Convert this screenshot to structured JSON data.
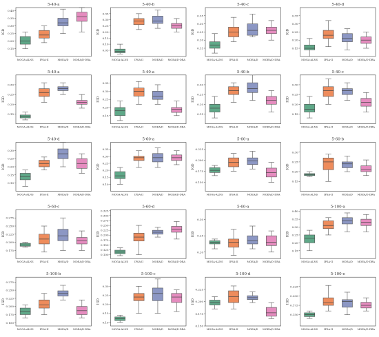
{
  "figure": {
    "ylabel": "IGD",
    "categories": [
      "MOGA-ALNS",
      "IPSA-II",
      "MOEA/D",
      "MOEA/D-DRA"
    ]
  },
  "colors": {
    "MOGA-ALNS": "#5fa888",
    "IPSA-II": "#ee8c5c",
    "MOEA/D": "#8c97c4",
    "MOEA/D-DRA": "#e58cbf",
    "axis": "#444444",
    "whisker": "#555555"
  },
  "chart_data": [
    {
      "type": "box",
      "title": "5-40-a",
      "ylim": [
        0.1,
        0.42
      ],
      "yticks": [
        0.15,
        0.2,
        0.25,
        0.3,
        0.35,
        0.4
      ],
      "ylabel": "IGD",
      "categories": [
        "MOGA-ALNS",
        "IPSA-II",
        "MOEA/D",
        "MOEA/D-DRA"
      ],
      "boxes": [
        {
          "min": 0.15,
          "q1": 0.18,
          "median": 0.2,
          "q3": 0.23,
          "max": 0.26
        },
        {
          "min": 0.19,
          "q1": 0.22,
          "median": 0.24,
          "q3": 0.27,
          "max": 0.3
        },
        {
          "min": 0.25,
          "q1": 0.3,
          "median": 0.32,
          "q3": 0.35,
          "max": 0.41
        },
        {
          "min": 0.26,
          "q1": 0.33,
          "median": 0.36,
          "q3": 0.39,
          "max": 0.42
        }
      ]
    },
    {
      "type": "box",
      "title": "5-40-b",
      "ylim": [
        0.0,
        0.4
      ],
      "yticks": [
        0.05,
        0.1,
        0.15,
        0.2,
        0.25,
        0.3,
        0.35
      ],
      "ylabel": "IGD",
      "categories": [
        "MOGA-ALNS",
        "IPSA-II",
        "MOEA/D",
        "MOEA/D-DRA"
      ],
      "boxes": [
        {
          "min": 0.02,
          "q1": 0.03,
          "median": 0.04,
          "q3": 0.06,
          "max": 0.1
        },
        {
          "min": 0.22,
          "q1": 0.26,
          "median": 0.29,
          "q3": 0.31,
          "max": 0.35
        },
        {
          "min": 0.23,
          "q1": 0.27,
          "median": 0.29,
          "q3": 0.33,
          "max": 0.38
        },
        {
          "min": 0.2,
          "q1": 0.23,
          "median": 0.25,
          "q3": 0.27,
          "max": 0.31
        }
      ]
    },
    {
      "type": "box",
      "title": "5-40-c",
      "ylim": [
        0.1,
        0.4
      ],
      "yticks": [
        0.15,
        0.2,
        0.25,
        0.3,
        0.35
      ],
      "ylabel": "IGD",
      "categories": [
        "MOGA-ALNS",
        "IPSA-II",
        "MOEA/D",
        "MOEA/D-DRA"
      ],
      "boxes": [
        {
          "min": 0.12,
          "q1": 0.15,
          "median": 0.17,
          "q3": 0.19,
          "max": 0.24
        },
        {
          "min": 0.19,
          "q1": 0.22,
          "median": 0.25,
          "q3": 0.28,
          "max": 0.34
        },
        {
          "min": 0.22,
          "q1": 0.23,
          "median": 0.26,
          "q3": 0.3,
          "max": 0.36
        },
        {
          "min": 0.2,
          "q1": 0.24,
          "median": 0.26,
          "q3": 0.28,
          "max": 0.32
        }
      ]
    },
    {
      "type": "box",
      "title": "5-40-d",
      "ylim": [
        0.1,
        0.4
      ],
      "yticks": [
        0.15,
        0.2,
        0.25,
        0.3,
        0.35
      ],
      "ylabel": "IGD",
      "categories": [
        "MOGA-ALNS",
        "IPSA-II",
        "MOEA/D",
        "MOEA/D-DRA"
      ],
      "boxes": [
        {
          "min": 0.1,
          "q1": 0.14,
          "median": 0.15,
          "q3": 0.17,
          "max": 0.21
        },
        {
          "min": 0.16,
          "q1": 0.21,
          "median": 0.23,
          "q3": 0.26,
          "max": 0.32
        },
        {
          "min": 0.14,
          "q1": 0.19,
          "median": 0.21,
          "q3": 0.24,
          "max": 0.27
        },
        {
          "min": 0.15,
          "q1": 0.18,
          "median": 0.2,
          "q3": 0.22,
          "max": 0.25
        }
      ]
    },
    {
      "type": "box",
      "title": "5-40-a",
      "ylim": [
        0.1,
        0.35
      ],
      "yticks": [
        0.15,
        0.2,
        0.25,
        0.3
      ],
      "ylabel": "IGD",
      "categories": [
        "MOGA-ALNS",
        "IPSA-II",
        "MOEA/D",
        "MOEA/D-DRA"
      ],
      "boxes": [
        {
          "min": 0.12,
          "q1": 0.13,
          "median": 0.135,
          "q3": 0.145,
          "max": 0.16
        },
        {
          "min": 0.21,
          "q1": 0.24,
          "median": 0.26,
          "q3": 0.28,
          "max": 0.31
        },
        {
          "min": 0.25,
          "q1": 0.27,
          "median": 0.28,
          "q3": 0.29,
          "max": 0.31
        },
        {
          "min": 0.18,
          "q1": 0.2,
          "median": 0.21,
          "q3": 0.22,
          "max": 0.25
        }
      ]
    },
    {
      "type": "box",
      "title": "5-40-a",
      "ylim": [
        0.1,
        0.4
      ],
      "yticks": [
        0.15,
        0.2,
        0.25,
        0.3,
        0.35
      ],
      "ylabel": "IGD",
      "categories": [
        "MOGA-ALNS",
        "IPSA-II",
        "MOEA/D",
        "MOEA/D-DRA"
      ],
      "boxes": [
        {
          "min": 0.12,
          "q1": 0.15,
          "median": 0.18,
          "q3": 0.2,
          "max": 0.24
        },
        {
          "min": 0.22,
          "q1": 0.27,
          "median": 0.3,
          "q3": 0.32,
          "max": 0.36
        },
        {
          "min": 0.22,
          "q1": 0.25,
          "median": 0.27,
          "q3": 0.3,
          "max": 0.34
        },
        {
          "min": 0.15,
          "q1": 0.17,
          "median": 0.19,
          "q3": 0.2,
          "max": 0.24
        }
      ]
    },
    {
      "type": "box",
      "title": "5-40-b",
      "ylim": [
        0.1,
        0.35
      ],
      "yticks": [
        0.15,
        0.2,
        0.25,
        0.3
      ],
      "ylabel": "IGD",
      "categories": [
        "MOGA-ALNS",
        "IPSA-II",
        "MOEA/D",
        "MOEA/D-DRA"
      ],
      "boxes": [
        {
          "min": 0.13,
          "q1": 0.16,
          "median": 0.18,
          "q3": 0.2,
          "max": 0.24
        },
        {
          "min": 0.21,
          "q1": 0.25,
          "median": 0.27,
          "q3": 0.29,
          "max": 0.31
        },
        {
          "min": 0.22,
          "q1": 0.26,
          "median": 0.28,
          "q3": 0.31,
          "max": 0.35
        },
        {
          "min": 0.16,
          "q1": 0.2,
          "median": 0.22,
          "q3": 0.24,
          "max": 0.27
        }
      ]
    },
    {
      "type": "box",
      "title": "5-40-c",
      "ylim": [
        0.1,
        0.35
      ],
      "yticks": [
        0.15,
        0.2,
        0.25,
        0.3
      ],
      "ylabel": "IGD",
      "categories": [
        "MOGA-ALNS",
        "IPSA-II",
        "MOEA/D",
        "MOEA/D-DRA"
      ],
      "boxes": [
        {
          "min": 0.13,
          "q1": 0.16,
          "median": 0.175,
          "q3": 0.2,
          "max": 0.24
        },
        {
          "min": 0.2,
          "q1": 0.24,
          "median": 0.27,
          "q3": 0.29,
          "max": 0.33
        },
        {
          "min": 0.22,
          "q1": 0.25,
          "median": 0.27,
          "q3": 0.28,
          "max": 0.31
        },
        {
          "min": 0.16,
          "q1": 0.19,
          "median": 0.21,
          "q3": 0.23,
          "max": 0.26
        }
      ]
    },
    {
      "type": "box",
      "title": "5-40-d",
      "ylim": [
        0.05,
        0.35
      ],
      "yticks": [
        0.1,
        0.15,
        0.2,
        0.25,
        0.3
      ],
      "ylabel": "IGD",
      "categories": [
        "MOGA-ALNS",
        "IPSA-II",
        "MOEA/D",
        "MOEA/D-DRA"
      ],
      "boxes": [
        {
          "min": 0.08,
          "q1": 0.12,
          "median": 0.14,
          "q3": 0.16,
          "max": 0.18
        },
        {
          "min": 0.18,
          "q1": 0.2,
          "median": 0.22,
          "q3": 0.24,
          "max": 0.26
        },
        {
          "min": 0.2,
          "q1": 0.25,
          "median": 0.28,
          "q3": 0.31,
          "max": 0.35
        },
        {
          "min": 0.16,
          "q1": 0.19,
          "median": 0.22,
          "q3": 0.25,
          "max": 0.28
        }
      ]
    },
    {
      "type": "box",
      "title": "5-60-a",
      "ylim": [
        0.05,
        0.4
      ],
      "yticks": [
        0.1,
        0.15,
        0.2,
        0.25,
        0.3,
        0.35
      ],
      "ylabel": "IGD",
      "categories": [
        "MOGA-ALNS",
        "IPSA-II",
        "MOEA/D",
        "MOEA/D-DRA"
      ],
      "boxes": [
        {
          "min": 0.1,
          "q1": 0.14,
          "median": 0.16,
          "q3": 0.19,
          "max": 0.22
        },
        {
          "min": 0.22,
          "q1": 0.27,
          "median": 0.29,
          "q3": 0.3,
          "max": 0.34
        },
        {
          "min": 0.22,
          "q1": 0.26,
          "median": 0.29,
          "q3": 0.32,
          "max": 0.36
        },
        {
          "min": 0.24,
          "q1": 0.27,
          "median": 0.29,
          "q3": 0.31,
          "max": 0.34
        }
      ]
    },
    {
      "type": "box",
      "title": "5-60-a",
      "ylim": [
        0.13,
        0.24
      ],
      "yticks": [
        0.15,
        0.175,
        0.2,
        0.225
      ],
      "ylabel": "IGD",
      "categories": [
        "MOGA-ALNS",
        "IPSA-II",
        "MOEA/D",
        "MOEA/D-DRA"
      ],
      "boxes": [
        {
          "min": 0.165,
          "q1": 0.172,
          "median": 0.177,
          "q3": 0.183,
          "max": 0.188
        },
        {
          "min": 0.175,
          "q1": 0.185,
          "median": 0.195,
          "q3": 0.205,
          "max": 0.215
        },
        {
          "min": 0.18,
          "q1": 0.19,
          "median": 0.198,
          "q3": 0.205,
          "max": 0.22
        },
        {
          "min": 0.15,
          "q1": 0.162,
          "median": 0.172,
          "q3": 0.182,
          "max": 0.195
        }
      ]
    },
    {
      "type": "box",
      "title": "5-60-b",
      "ylim": [
        0.1,
        0.35
      ],
      "yticks": [
        0.15,
        0.2,
        0.25,
        0.3
      ],
      "ylabel": "IGD",
      "categories": [
        "MOGA-ALNS",
        "IPSA-II",
        "MOEA/D",
        "MOEA/D-DRA"
      ],
      "boxes": [
        {
          "min": 0.175,
          "q1": 0.18,
          "median": 0.185,
          "q3": 0.19,
          "max": 0.2
        },
        {
          "min": 0.15,
          "q1": 0.21,
          "median": 0.25,
          "q3": 0.27,
          "max": 0.29
        },
        {
          "min": 0.2,
          "q1": 0.22,
          "median": 0.24,
          "q3": 0.25,
          "max": 0.28
        },
        {
          "min": 0.18,
          "q1": 0.2,
          "median": 0.21,
          "q3": 0.23,
          "max": 0.26
        }
      ]
    },
    {
      "type": "box",
      "title": "5-60-c",
      "ylim": [
        0.15,
        0.3
      ],
      "yticks": [
        0.175,
        0.2,
        0.225,
        0.25,
        0.275
      ],
      "ylabel": "IGD",
      "categories": [
        "MOGA-ALNS",
        "IPSA-II",
        "MOEA/D",
        "MOEA/D-DRA"
      ],
      "boxes": [
        {
          "min": 0.185,
          "q1": 0.188,
          "median": 0.192,
          "q3": 0.197,
          "max": 0.2
        },
        {
          "min": 0.17,
          "q1": 0.195,
          "median": 0.21,
          "q3": 0.225,
          "max": 0.25
        },
        {
          "min": 0.175,
          "q1": 0.205,
          "median": 0.22,
          "q3": 0.24,
          "max": 0.275
        },
        {
          "min": 0.175,
          "q1": 0.195,
          "median": 0.205,
          "q3": 0.215,
          "max": 0.235
        }
      ]
    },
    {
      "type": "box",
      "title": "5-60-d",
      "ylim": [
        0.08,
        0.33
      ],
      "yticks": [
        0.1,
        0.125,
        0.15,
        0.175,
        0.2,
        0.225,
        0.25,
        0.275,
        0.3,
        0.325
      ],
      "ylabel": "IGD",
      "categories": [
        "MOGA-ALNS",
        "IPSA-II",
        "MOEA/D",
        "MOEA/D-DRA"
      ],
      "boxes": [
        {
          "min": 0.095,
          "q1": 0.105,
          "median": 0.113,
          "q3": 0.123,
          "max": 0.135
        },
        {
          "min": 0.1,
          "q1": 0.17,
          "median": 0.19,
          "q3": 0.21,
          "max": 0.25
        },
        {
          "min": 0.19,
          "q1": 0.205,
          "median": 0.215,
          "q3": 0.225,
          "max": 0.24
        },
        {
          "min": 0.18,
          "q1": 0.215,
          "median": 0.23,
          "q3": 0.245,
          "max": 0.27
        }
      ]
    },
    {
      "type": "box",
      "title": "5-60-a",
      "ylim": [
        0.18,
        0.33
      ],
      "yticks": [
        0.2,
        0.25,
        0.3
      ],
      "ylabel": "IGD",
      "categories": [
        "MOGA-ALNS",
        "IPSA-II",
        "MOEA/D",
        "MOEA/D-DRA"
      ],
      "boxes": [
        {
          "min": 0.21,
          "q1": 0.225,
          "median": 0.23,
          "q3": 0.235,
          "max": 0.24
        },
        {
          "min": 0.19,
          "q1": 0.215,
          "median": 0.23,
          "q3": 0.24,
          "max": 0.27
        },
        {
          "min": 0.21,
          "q1": 0.225,
          "median": 0.235,
          "q3": 0.25,
          "max": 0.28
        },
        {
          "min": 0.2,
          "q1": 0.22,
          "median": 0.23,
          "q3": 0.25,
          "max": 0.265
        }
      ]
    },
    {
      "type": "box",
      "title": "5-100-a",
      "ylim": [
        0.1,
        0.41
      ],
      "yticks": [
        0.15,
        0.2,
        0.25,
        0.3,
        0.35,
        0.4
      ],
      "ylabel": "IGD",
      "categories": [
        "MOGA-ALNS",
        "IPSA-II",
        "MOEA/D",
        "MOEA/D-DRA"
      ],
      "boxes": [
        {
          "min": 0.15,
          "q1": 0.2,
          "median": 0.23,
          "q3": 0.25,
          "max": 0.28
        },
        {
          "min": 0.25,
          "q1": 0.29,
          "median": 0.31,
          "q3": 0.34,
          "max": 0.36
        },
        {
          "min": 0.27,
          "q1": 0.32,
          "median": 0.34,
          "q3": 0.36,
          "max": 0.39
        },
        {
          "min": 0.27,
          "q1": 0.31,
          "median": 0.33,
          "q3": 0.35,
          "max": 0.38
        }
      ]
    },
    {
      "type": "box",
      "title": "5-100-b",
      "ylim": [
        0.14,
        0.29
      ],
      "yticks": [
        0.15,
        0.175,
        0.2,
        0.225,
        0.25,
        0.275
      ],
      "ylabel": "IGD",
      "categories": [
        "MOGA-ALNS",
        "IPSA-II",
        "MOEA/D",
        "MOEA/D-DRA"
      ],
      "boxes": [
        {
          "min": 0.165,
          "q1": 0.175,
          "median": 0.185,
          "q3": 0.195,
          "max": 0.205
        },
        {
          "min": 0.175,
          "q1": 0.195,
          "median": 0.205,
          "q3": 0.22,
          "max": 0.24
        },
        {
          "min": 0.22,
          "q1": 0.232,
          "median": 0.24,
          "q3": 0.248,
          "max": 0.265
        },
        {
          "min": 0.165,
          "q1": 0.175,
          "median": 0.187,
          "q3": 0.2,
          "max": 0.22
        }
      ]
    },
    {
      "type": "box",
      "title": "5-100-c",
      "ylim": [
        0.08,
        0.35
      ],
      "yticks": [
        0.1,
        0.15,
        0.2,
        0.25,
        0.3
      ],
      "ylabel": "IGD",
      "categories": [
        "MOGA-ALNS",
        "IPSA-II",
        "MOEA/D",
        "MOEA/D-DRA"
      ],
      "boxes": [
        {
          "min": 0.1,
          "q1": 0.11,
          "median": 0.12,
          "q3": 0.13,
          "max": 0.14
        },
        {
          "min": 0.15,
          "q1": 0.22,
          "median": 0.24,
          "q3": 0.26,
          "max": 0.3
        },
        {
          "min": 0.15,
          "q1": 0.22,
          "median": 0.26,
          "q3": 0.29,
          "max": 0.34
        },
        {
          "min": 0.16,
          "q1": 0.21,
          "median": 0.24,
          "q3": 0.26,
          "max": 0.28
        }
      ]
    },
    {
      "type": "box",
      "title": "5-100-d",
      "ylim": [
        0.15,
        0.25
      ],
      "yticks": [
        0.15,
        0.175,
        0.2,
        0.225
      ],
      "ylabel": "IGD",
      "categories": [
        "MOGA-ALNS",
        "IPSA-II",
        "MOEA/D",
        "MOEA/D-DRA"
      ],
      "boxes": [
        {
          "min": 0.185,
          "q1": 0.193,
          "median": 0.198,
          "q3": 0.203,
          "max": 0.21
        },
        {
          "min": 0.185,
          "q1": 0.198,
          "median": 0.21,
          "q3": 0.222,
          "max": 0.232
        },
        {
          "min": 0.198,
          "q1": 0.204,
          "median": 0.208,
          "q3": 0.212,
          "max": 0.22
        },
        {
          "min": 0.165,
          "q1": 0.17,
          "median": 0.177,
          "q3": 0.188,
          "max": 0.198
        }
      ]
    },
    {
      "type": "box",
      "title": "5-100-e",
      "ylim": [
        0.12,
        0.25
      ],
      "yticks": [
        0.15,
        0.175,
        0.2,
        0.225
      ],
      "ylabel": "IGD",
      "categories": [
        "MOGA-ALNS",
        "IPSA-II",
        "MOEA/D",
        "MOEA/D-DRA"
      ],
      "boxes": [
        {
          "min": 0.14,
          "q1": 0.145,
          "median": 0.15,
          "q3": 0.155,
          "max": 0.16
        },
        {
          "min": 0.16,
          "q1": 0.175,
          "median": 0.182,
          "q3": 0.195,
          "max": 0.228
        },
        {
          "min": 0.15,
          "q1": 0.17,
          "median": 0.185,
          "q3": 0.19,
          "max": 0.21
        },
        {
          "min": 0.16,
          "q1": 0.168,
          "median": 0.175,
          "q3": 0.183,
          "max": 0.195
        }
      ]
    }
  ]
}
